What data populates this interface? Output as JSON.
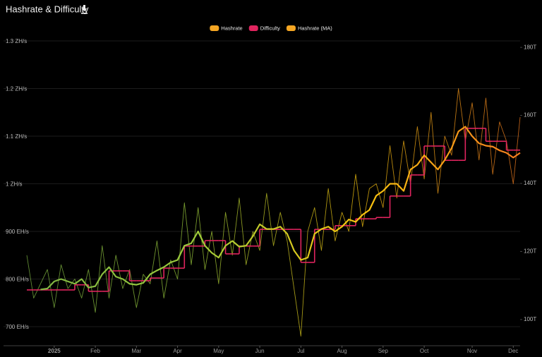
{
  "chart_data": {
    "type": "line",
    "title": "Hashrate & Difficulty",
    "categories": [
      null,
      null,
      null,
      null,
      "2025",
      null,
      null,
      null,
      null,
      null,
      "Feb",
      null,
      null,
      null,
      null,
      null,
      "Mar",
      null,
      null,
      null,
      null,
      null,
      "Apr",
      null,
      null,
      null,
      null,
      null,
      "May",
      null,
      null,
      null,
      null,
      null,
      "Jun",
      null,
      null,
      null,
      null,
      null,
      "Jul",
      null,
      null,
      null,
      null,
      null,
      "Aug",
      null,
      null,
      null,
      null,
      null,
      "Sep",
      null,
      null,
      null,
      null,
      null,
      "Oct",
      null,
      null,
      null,
      null,
      null,
      null,
      "Nov",
      null,
      null,
      null,
      null,
      null,
      "Dec",
      null
    ],
    "ylim": [
      660,
      1300
    ],
    "yticks": [
      {
        "value": 700,
        "label": "700 EH/s"
      },
      {
        "value": 800,
        "label": "800 EH/s"
      },
      {
        "value": 900,
        "label": "900 EH/s"
      },
      {
        "value": 1000,
        "label": "1 ZH/s"
      },
      {
        "value": 1100,
        "label": "1.1 ZH/s"
      },
      {
        "value": 1200,
        "label": "1.2 ZH/s"
      },
      {
        "value": 1300,
        "label": "1.3 ZH/s"
      }
    ],
    "y2lim": [
      92.3,
      181.9
    ],
    "y2ticks": [
      {
        "value": 100,
        "label": "100T"
      },
      {
        "value": 120,
        "label": "120T"
      },
      {
        "value": 140,
        "label": "140T"
      },
      {
        "value": 160,
        "label": "160T"
      },
      {
        "value": 180,
        "label": "180T"
      }
    ],
    "grid": true,
    "legend": "top",
    "line_gradient": [
      "#7cb342",
      "#9ccc3c",
      "#f9c80e",
      "#f57c1f"
    ],
    "series": [
      {
        "name": "Hashrate",
        "color": "#f5a623",
        "style": "thin",
        "values": [
          850,
          760,
          790,
          820,
          740,
          830,
          780,
          800,
          760,
          820,
          730,
          870,
          760,
          850,
          780,
          820,
          740,
          810,
          790,
          880,
          760,
          840,
          800,
          960,
          830,
          950,
          820,
          900,
          790,
          940,
          850,
          970,
          830,
          900,
          860,
          980,
          870,
          940,
          880,
          780,
          680,
          900,
          950,
          860,
          990,
          880,
          940,
          900,
          1020,
          910,
          990,
          1000,
          950,
          1080,
          970,
          1090,
          1000,
          1120,
          1010,
          1150,
          980,
          1100,
          1060,
          1200,
          1090,
          1170,
          1050,
          1180,
          1020,
          1130,
          1090,
          1000,
          1140
        ]
      },
      {
        "name": "Difficulty",
        "color": "#e0245e",
        "axis": "y2",
        "style": "step",
        "values": [
          108.7,
          108.7,
          108.7,
          108.7,
          108.7,
          108.7,
          108.7,
          110.2,
          110.2,
          108.3,
          108.3,
          108.3,
          114.3,
          114.3,
          114.3,
          111.4,
          111.4,
          111.4,
          112.2,
          112.2,
          115.1,
          115.1,
          115.1,
          121.6,
          121.6,
          121.6,
          123.2,
          123.2,
          123.2,
          119.3,
          119.3,
          121.6,
          121.6,
          121.6,
          126.5,
          126.5,
          126.5,
          126.5,
          126.5,
          126.5,
          116.8,
          116.8,
          126.5,
          126.5,
          126.5,
          127.6,
          127.6,
          127.6,
          129.6,
          129.6,
          129.6,
          130,
          130,
          136.3,
          136.3,
          136.3,
          142.5,
          142.5,
          151,
          151,
          151,
          146.8,
          146.8,
          146.8,
          156.2,
          156.2,
          156.2,
          152.4,
          152.4,
          152.4,
          149.8,
          149.8,
          149.8
        ]
      },
      {
        "name": "Hashrate (MA)",
        "color": "#f5a623",
        "style": "thick",
        "values": [
          null,
          null,
          778,
          780,
          795,
          800,
          795,
          790,
          800,
          782,
          785,
          810,
          825,
          805,
          800,
          790,
          788,
          792,
          810,
          818,
          825,
          835,
          840,
          870,
          875,
          900,
          870,
          855,
          845,
          870,
          880,
          868,
          870,
          890,
          915,
          905,
          905,
          910,
          895,
          860,
          840,
          845,
          895,
          905,
          910,
          900,
          910,
          925,
          920,
          935,
          945,
          975,
          985,
          1000,
          1000,
          985,
          1030,
          1040,
          1060,
          1045,
          1030,
          1050,
          1075,
          1110,
          1120,
          1100,
          1085,
          1080,
          1078,
          1070,
          1065,
          1055,
          1065
        ]
      }
    ]
  }
}
